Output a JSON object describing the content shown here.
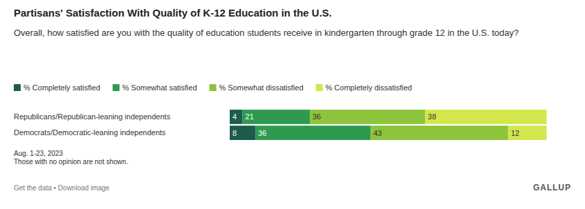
{
  "chart_data": {
    "type": "bar",
    "title": "Partisans' Satisfaction With Quality of K-12 Education in the U.S.",
    "subtitle": "Overall, how satisfied are you with the quality of education students receive in kindergarten through grade 12 in the U.S. today?",
    "orientation": "horizontal",
    "stacked": true,
    "data_labels": true,
    "tick_labels": "y",
    "grid": false,
    "legend": "top-left",
    "xlim": [
      0,
      100
    ],
    "categories": [
      "Republicans/Republican-leaning independents",
      "Democrats/Democratic-leaning independents"
    ],
    "series": [
      {
        "name": "% Completely satisfied",
        "color": "#1d5c4d",
        "values": [
          4,
          8
        ]
      },
      {
        "name": "% Somewhat satisfied",
        "color": "#2f9a4f",
        "values": [
          21,
          36
        ]
      },
      {
        "name": "% Somewhat dissatisfied",
        "color": "#8cc43c",
        "values": [
          36,
          43
        ]
      },
      {
        "name": "% Completely dissatisfied",
        "color": "#d3e64b",
        "values": [
          38,
          12
        ]
      }
    ],
    "annotations": [
      "Aug. 1-23, 2023",
      "Those with no opinion are not shown.",
      "Get the data • Download image",
      "GALLUP"
    ]
  }
}
